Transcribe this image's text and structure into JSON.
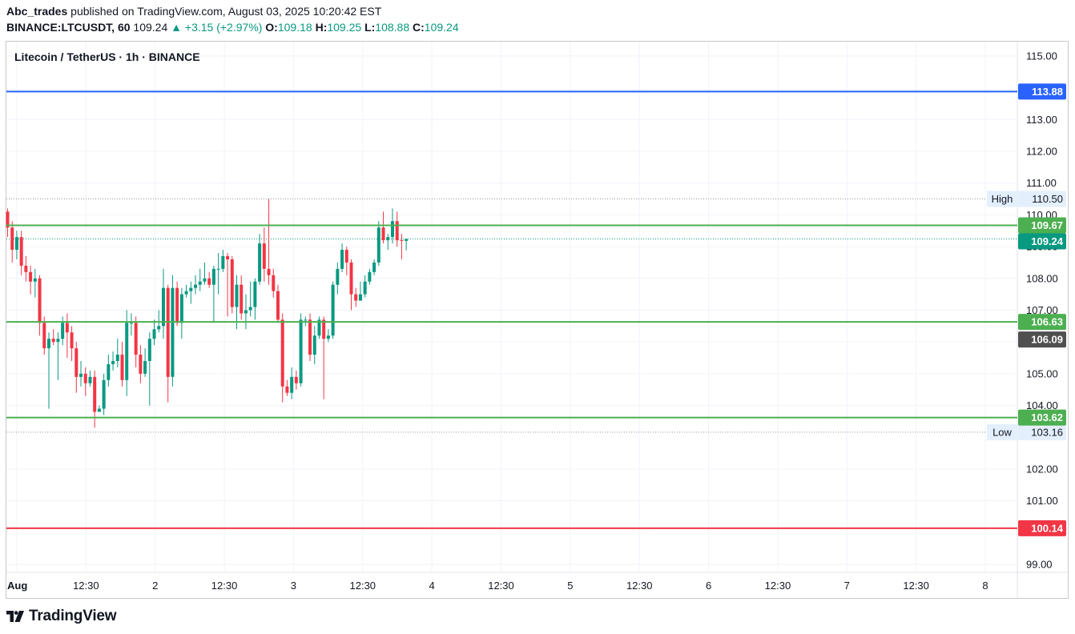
{
  "header": {
    "author": "Abc_trades",
    "published": "published on TradingView.com, August 03, 2025 10:20:42 EST",
    "symbol": "BINANCE:LTCUSDT, 60",
    "last": "109.24",
    "change": "▲ +3.15 (+2.97%)",
    "o_label": "O:",
    "o_value": "109.18",
    "h_label": "H:",
    "h_value": "109.25",
    "l_label": "L:",
    "l_value": "108.88",
    "c_label": "C:",
    "c_value": "109.24"
  },
  "chart_title": "Litecoin / TetherUS · 1h · BINANCE",
  "footer": {
    "brand": "TradingView",
    "logo_icon": "tradingview-logo-icon"
  },
  "colors": {
    "up": "#089981",
    "down": "#f23645",
    "green_line": "#4caf50",
    "blue_line": "#2962ff",
    "red_line": "#f23645",
    "gray_tag": "#505050"
  },
  "chart_data": {
    "type": "candlestick",
    "yaxis": {
      "ylim": [
        98.75,
        115.45
      ],
      "ticks": [
        "115.00",
        "113.00",
        "112.00",
        "111.00",
        "110.00",
        "109.00",
        "108.00",
        "107.00",
        "106.00",
        "105.00",
        "104.00",
        "102.00",
        "101.00",
        "99.00"
      ]
    },
    "xaxis": {
      "ticks": [
        "Aug",
        "12:30",
        "2",
        "12:30",
        "3",
        "12:30",
        "4",
        "12:30",
        "5",
        "12:30",
        "6",
        "12:30",
        "7",
        "12:30",
        "8"
      ]
    },
    "hlines": [
      {
        "price": 113.88,
        "label": "113.88",
        "color": "#2962ff",
        "style": "solid"
      },
      {
        "price": 109.67,
        "label": "109.67",
        "color": "#4caf50",
        "style": "solid"
      },
      {
        "price": 106.63,
        "label": "106.63",
        "color": "#4caf50",
        "style": "solid"
      },
      {
        "price": 103.62,
        "label": "103.62",
        "color": "#4caf50",
        "style": "solid"
      },
      {
        "price": 100.14,
        "label": "100.14",
        "color": "#f23645",
        "style": "solid"
      }
    ],
    "markers": [
      {
        "name": "High",
        "price": 110.5,
        "label": "110.50"
      },
      {
        "name": "Low",
        "price": 103.16,
        "label": "103.16"
      }
    ],
    "price_tags": [
      {
        "price": 109.24,
        "label": "109.24",
        "color": "#089981",
        "role": "last-price"
      },
      {
        "price": 106.09,
        "label": "106.09",
        "color": "#505050",
        "role": "countdown"
      }
    ],
    "candles": [
      [
        110.1,
        109.6,
        110.2,
        109.3
      ],
      [
        109.6,
        108.9,
        109.8,
        108.5
      ],
      [
        108.9,
        109.3,
        109.5,
        108.6
      ],
      [
        109.3,
        108.4,
        109.5,
        108.1
      ],
      [
        108.4,
        108.2,
        108.7,
        107.9
      ],
      [
        108.2,
        107.9,
        108.4,
        107.5
      ],
      [
        107.9,
        108.0,
        108.3,
        107.4
      ],
      [
        108.0,
        106.6,
        108.1,
        106.2
      ],
      [
        106.6,
        105.8,
        106.8,
        105.6
      ],
      [
        105.8,
        106.1,
        106.3,
        103.9
      ],
      [
        106.1,
        106.0,
        106.4,
        105.9
      ],
      [
        106.0,
        106.1,
        106.3,
        104.8
      ],
      [
        106.1,
        106.6,
        106.8,
        105.9
      ],
      [
        106.6,
        106.3,
        106.9,
        105.5
      ],
      [
        106.3,
        105.8,
        106.5,
        105.4
      ],
      [
        105.8,
        104.9,
        106.0,
        104.4
      ],
      [
        104.9,
        105.0,
        105.4,
        104.6
      ],
      [
        105.0,
        104.7,
        105.2,
        104.3
      ],
      [
        104.7,
        104.9,
        105.1,
        104.6
      ],
      [
        104.9,
        103.8,
        105.1,
        103.3
      ],
      [
        103.8,
        103.9,
        104.0,
        103.8
      ],
      [
        103.9,
        104.8,
        105.0,
        103.7
      ],
      [
        104.8,
        105.3,
        105.6,
        104.6
      ],
      [
        105.3,
        105.4,
        105.7,
        105.1
      ],
      [
        105.4,
        105.6,
        106.1,
        105.2
      ],
      [
        105.6,
        104.8,
        106.0,
        104.6
      ],
      [
        104.8,
        106.6,
        107.0,
        104.3
      ],
      [
        106.6,
        106.6,
        106.9,
        106.2
      ],
      [
        106.6,
        105.6,
        106.8,
        105.2
      ],
      [
        105.6,
        105.0,
        105.9,
        104.7
      ],
      [
        105.0,
        105.4,
        105.8,
        104.9
      ],
      [
        105.4,
        106.1,
        106.3,
        104.0
      ],
      [
        106.1,
        106.4,
        106.7,
        105.9
      ],
      [
        106.4,
        106.5,
        107.0,
        106.3
      ],
      [
        106.5,
        107.7,
        108.3,
        106.1
      ],
      [
        107.7,
        104.9,
        107.8,
        104.1
      ],
      [
        104.9,
        107.7,
        108.1,
        104.6
      ],
      [
        107.7,
        106.6,
        107.9,
        106.5
      ],
      [
        106.6,
        107.5,
        107.7,
        106.1
      ],
      [
        107.5,
        107.6,
        107.8,
        107.4
      ],
      [
        107.6,
        107.7,
        107.9,
        107.2
      ],
      [
        107.7,
        107.8,
        108.1,
        107.5
      ],
      [
        107.8,
        107.9,
        108.3,
        107.6
      ],
      [
        107.9,
        108.0,
        108.5,
        107.8
      ],
      [
        108.0,
        107.8,
        108.2,
        107.7
      ],
      [
        107.8,
        108.3,
        108.4,
        106.6
      ],
      [
        108.3,
        108.3,
        108.8,
        107.5
      ],
      [
        108.3,
        108.7,
        108.9,
        108.2
      ],
      [
        108.7,
        108.6,
        108.8,
        106.8
      ],
      [
        108.6,
        107.1,
        108.7,
        106.9
      ],
      [
        107.1,
        107.8,
        108.1,
        106.4
      ],
      [
        107.8,
        106.9,
        108.1,
        106.7
      ],
      [
        106.9,
        107.0,
        107.5,
        106.4
      ],
      [
        107.0,
        107.1,
        107.9,
        106.8
      ],
      [
        107.1,
        107.9,
        108.0,
        106.7
      ],
      [
        107.9,
        109.1,
        109.4,
        107.8
      ],
      [
        109.1,
        108.3,
        109.6,
        107.9
      ],
      [
        108.3,
        108.1,
        110.5,
        107.8
      ],
      [
        108.1,
        107.6,
        108.3,
        107.4
      ],
      [
        107.6,
        106.7,
        107.8,
        106.6
      ],
      [
        106.7,
        104.6,
        106.9,
        104.1
      ],
      [
        104.6,
        104.4,
        104.8,
        104.3
      ],
      [
        104.4,
        104.9,
        105.2,
        104.2
      ],
      [
        104.9,
        104.7,
        105.1,
        104.5
      ],
      [
        104.7,
        106.7,
        106.9,
        104.6
      ],
      [
        106.7,
        106.7,
        106.8,
        106.5
      ],
      [
        106.7,
        105.6,
        106.9,
        105.4
      ],
      [
        105.6,
        106.2,
        106.5,
        105.3
      ],
      [
        106.2,
        106.7,
        106.8,
        106.1
      ],
      [
        106.7,
        106.1,
        106.8,
        104.2
      ],
      [
        106.1,
        106.2,
        106.4,
        106.0
      ],
      [
        106.2,
        107.8,
        107.9,
        106.1
      ],
      [
        107.8,
        108.3,
        108.5,
        107.5
      ],
      [
        108.3,
        108.9,
        109.1,
        108.2
      ],
      [
        108.9,
        108.5,
        109.0,
        108.1
      ],
      [
        108.5,
        107.5,
        108.6,
        107.0
      ],
      [
        107.5,
        107.3,
        107.7,
        107.1
      ],
      [
        107.3,
        107.5,
        107.9,
        107.3
      ],
      [
        107.5,
        107.9,
        108.1,
        107.4
      ],
      [
        107.9,
        108.2,
        108.3,
        107.8
      ],
      [
        108.2,
        108.5,
        108.6,
        108.1
      ],
      [
        108.5,
        109.6,
        109.8,
        108.4
      ],
      [
        109.6,
        109.2,
        110.1,
        109.1
      ],
      [
        109.2,
        109.3,
        109.4,
        108.9
      ],
      [
        109.3,
        109.8,
        110.2,
        109.1
      ],
      [
        109.8,
        109.2,
        110.1,
        109.0
      ],
      [
        109.2,
        109.18,
        109.4,
        108.6
      ],
      [
        109.18,
        109.24,
        109.25,
        108.88
      ]
    ]
  }
}
